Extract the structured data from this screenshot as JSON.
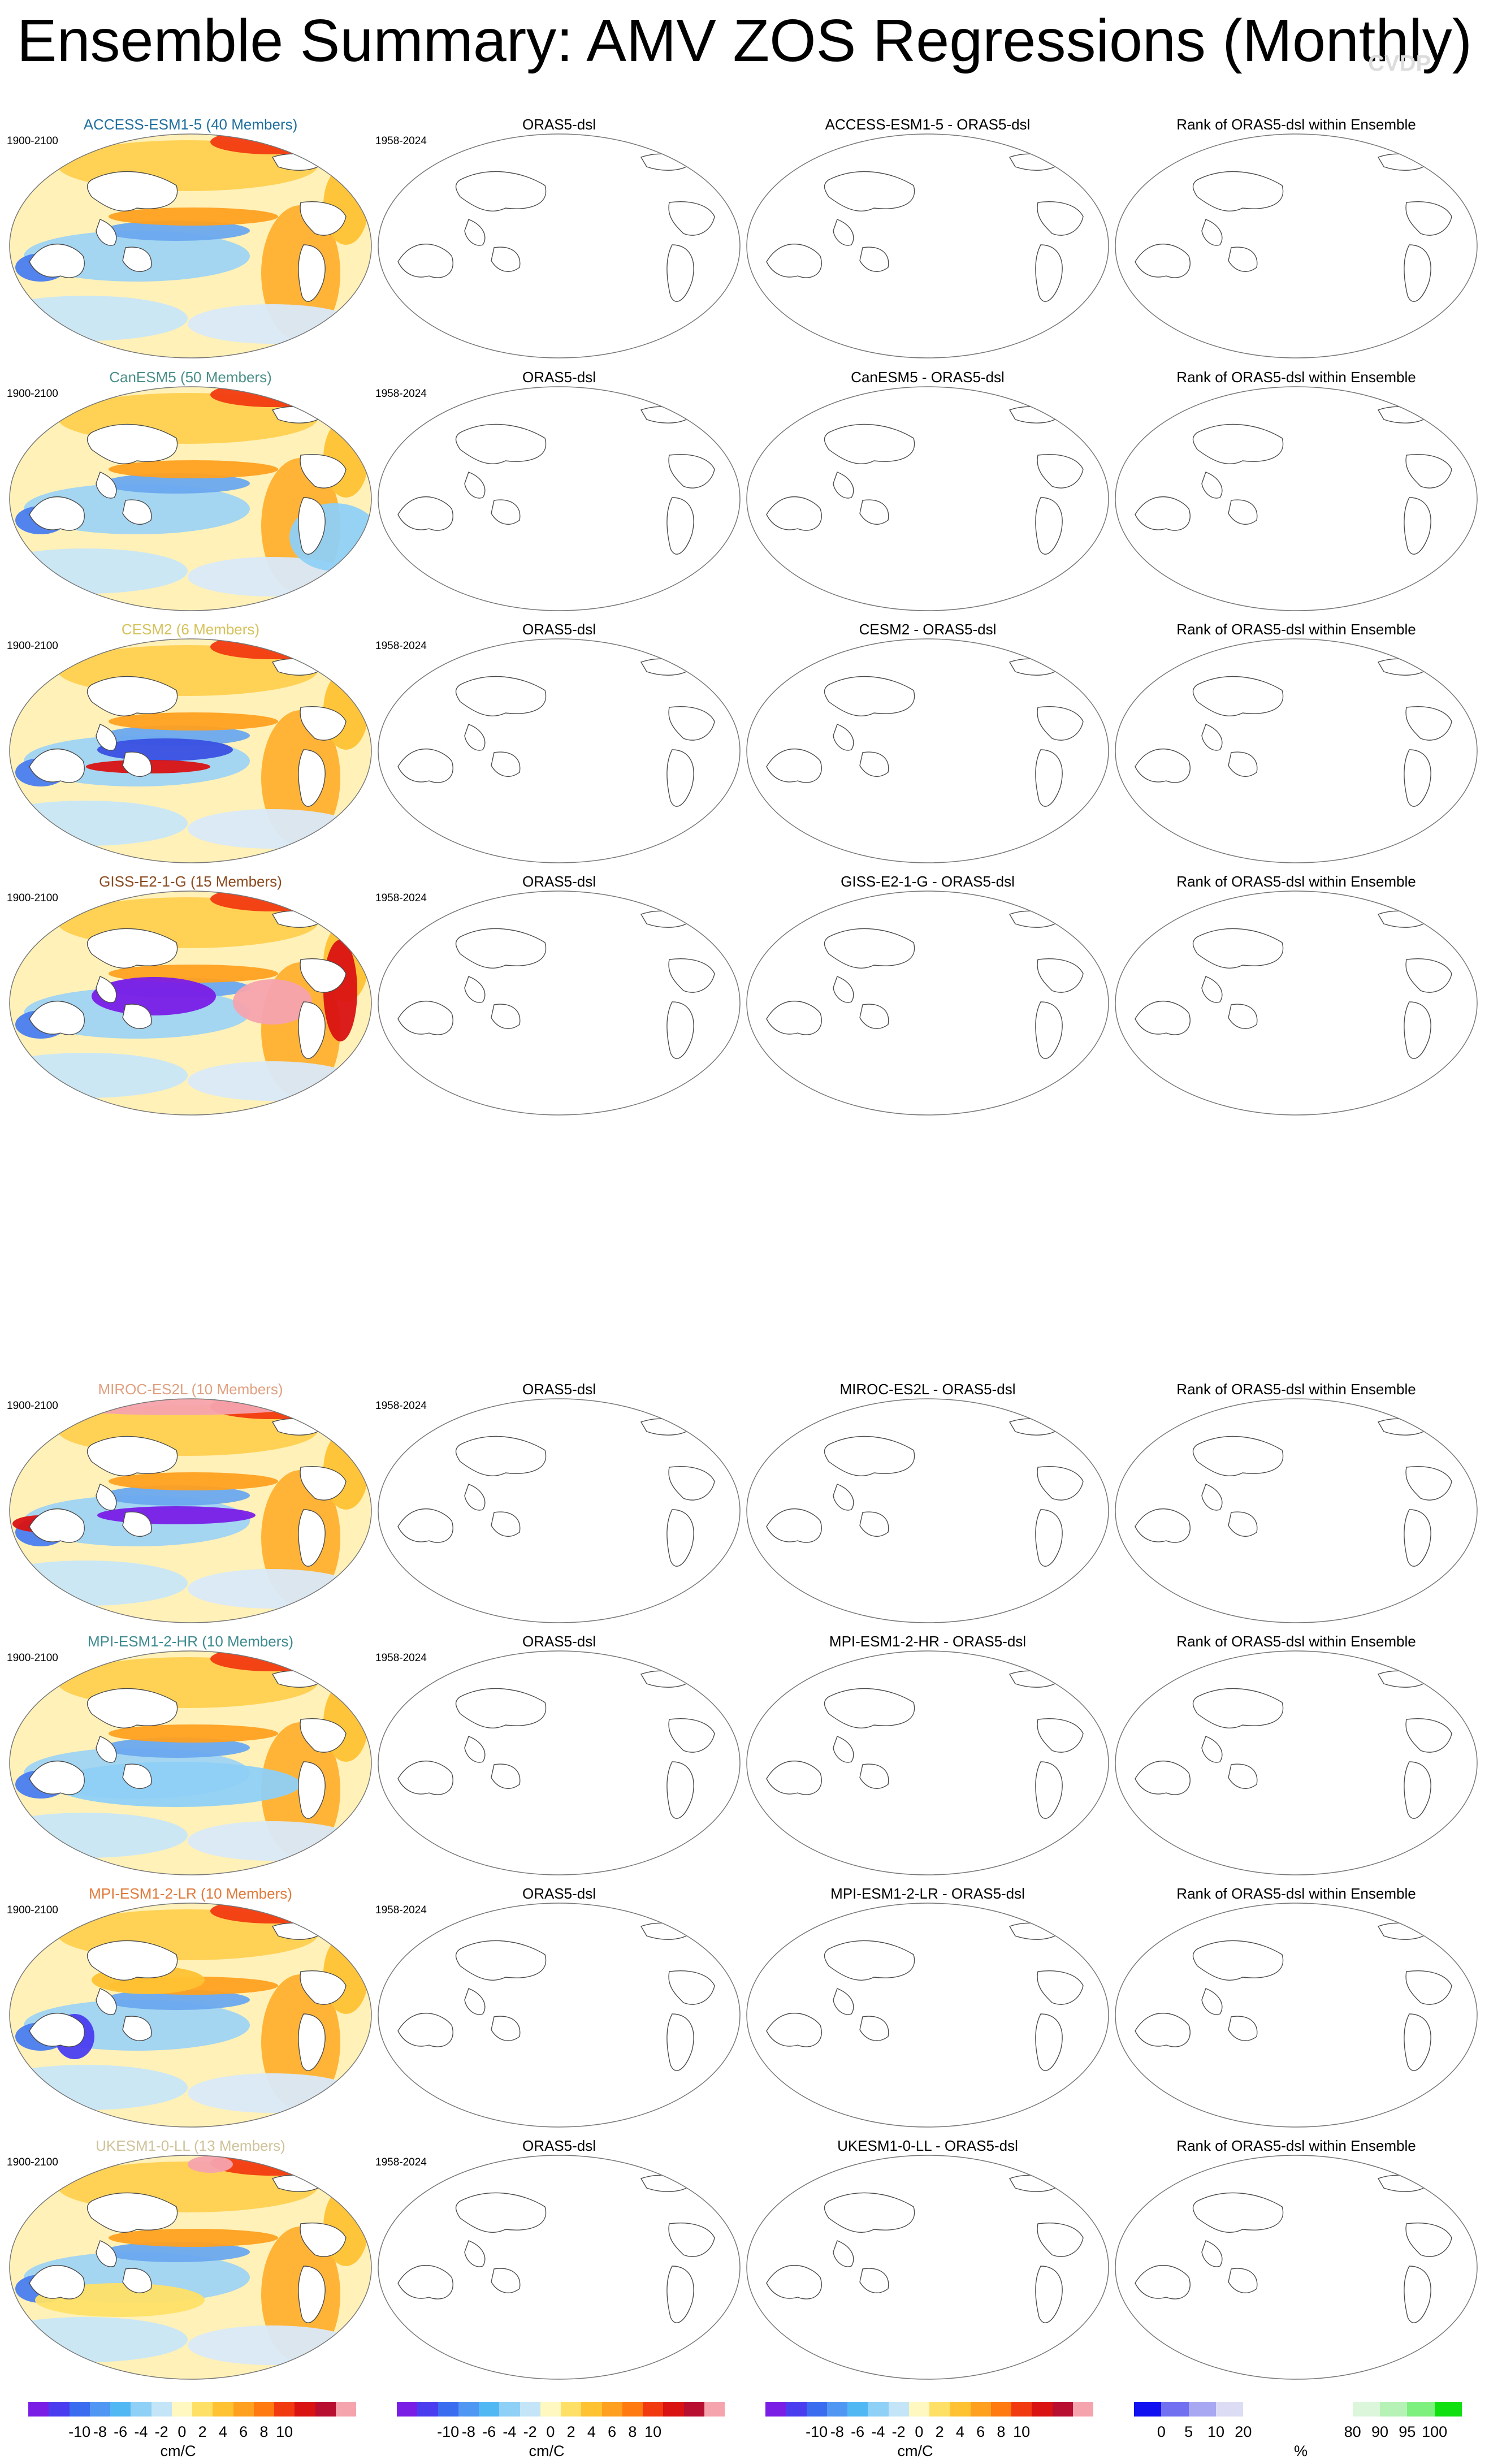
{
  "page": {
    "title": "Ensemble Summary: AMV ZOS Regressions (Monthly)",
    "watermark": "CVDP"
  },
  "rows": [
    {
      "model_title": "ACCESS-ESM1-5 (40 Members)",
      "model_color": "#1f6f9f",
      "model_years": "1900-2100",
      "obs_title": "ORAS5-dsl",
      "obs_years": "1958-2024",
      "diff_title": "ACCESS-ESM1-5 - ORAS5-dsl",
      "rank_title": "Rank of ORAS5-dsl within Ensemble"
    },
    {
      "model_title": "CanESM5 (50 Members)",
      "model_color": "#4a8f88",
      "model_years": "1900-2100",
      "obs_title": "ORAS5-dsl",
      "obs_years": "1958-2024",
      "diff_title": "CanESM5 - ORAS5-dsl",
      "rank_title": "Rank of ORAS5-dsl within Ensemble"
    },
    {
      "model_title": "CESM2 (6 Members)",
      "model_color": "#d6c15a",
      "model_years": "1900-2100",
      "obs_title": "ORAS5-dsl",
      "obs_years": "1958-2024",
      "diff_title": "CESM2 - ORAS5-dsl",
      "rank_title": "Rank of ORAS5-dsl within Ensemble"
    },
    {
      "model_title": "GISS-E2-1-G (15 Members)",
      "model_color": "#8a4a1f",
      "model_years": "1900-2100",
      "obs_title": "ORAS5-dsl",
      "obs_years": "1958-2024",
      "diff_title": "GISS-E2-1-G - ORAS5-dsl",
      "rank_title": "Rank of ORAS5-dsl within Ensemble"
    },
    {
      "model_title": "MIROC-ES2L (10 Members)",
      "model_color": "#e0a080",
      "model_years": "1900-2100",
      "obs_title": "ORAS5-dsl",
      "obs_years": "1958-2024",
      "diff_title": "MIROC-ES2L - ORAS5-dsl",
      "rank_title": "Rank of ORAS5-dsl within Ensemble"
    },
    {
      "model_title": "MPI-ESM1-2-HR (10 Members)",
      "model_color": "#3d8a8f",
      "model_years": "1900-2100",
      "obs_title": "ORAS5-dsl",
      "obs_years": "1958-2024",
      "diff_title": "MPI-ESM1-2-HR - ORAS5-dsl",
      "rank_title": "Rank of ORAS5-dsl within Ensemble"
    },
    {
      "model_title": "MPI-ESM1-2-LR (10 Members)",
      "model_color": "#e07a3a",
      "model_years": "1900-2100",
      "obs_title": "ORAS5-dsl",
      "obs_years": "1958-2024",
      "diff_title": "MPI-ESM1-2-LR - ORAS5-dsl",
      "rank_title": "Rank of ORAS5-dsl within Ensemble"
    },
    {
      "model_title": "UKESM1-0-LL (13 Members)",
      "model_color": "#cfc29a",
      "model_years": "1900-2100",
      "obs_title": "ORAS5-dsl",
      "obs_years": "1958-2024",
      "diff_title": "UKESM1-0-LL - ORAS5-dsl",
      "rank_title": "Rank of ORAS5-dsl within Ensemble"
    }
  ],
  "colorbars": {
    "regression": {
      "unit": "cm/C",
      "ticks": [
        "-10",
        "-8",
        "-6",
        "-4",
        "-2",
        "0",
        "2",
        "4",
        "6",
        "8",
        "10"
      ],
      "colors": [
        "#7a1ee6",
        "#4a3df0",
        "#3a6cf0",
        "#4f97f2",
        "#52b8f4",
        "#8fd0f6",
        "#c4e5f8",
        "#fff8c0",
        "#ffe066",
        "#ffc233",
        "#ffa020",
        "#ff7a10",
        "#f23a10",
        "#d91212",
        "#b80e30",
        "#f5a3ad"
      ]
    },
    "rank": {
      "unit": "%",
      "ticks": [
        "0",
        "5",
        "10",
        "20",
        "80",
        "90",
        "95",
        "100"
      ],
      "colors": [
        "#1010f0",
        "#7070f0",
        "#a8a8f2",
        "#dcdcf4",
        "#ffffff",
        "#ffffff",
        "#ffffff",
        "#ffffff",
        "#dcf6dc",
        "#b6f2b6",
        "#7ef07e",
        "#10e010"
      ]
    }
  }
}
